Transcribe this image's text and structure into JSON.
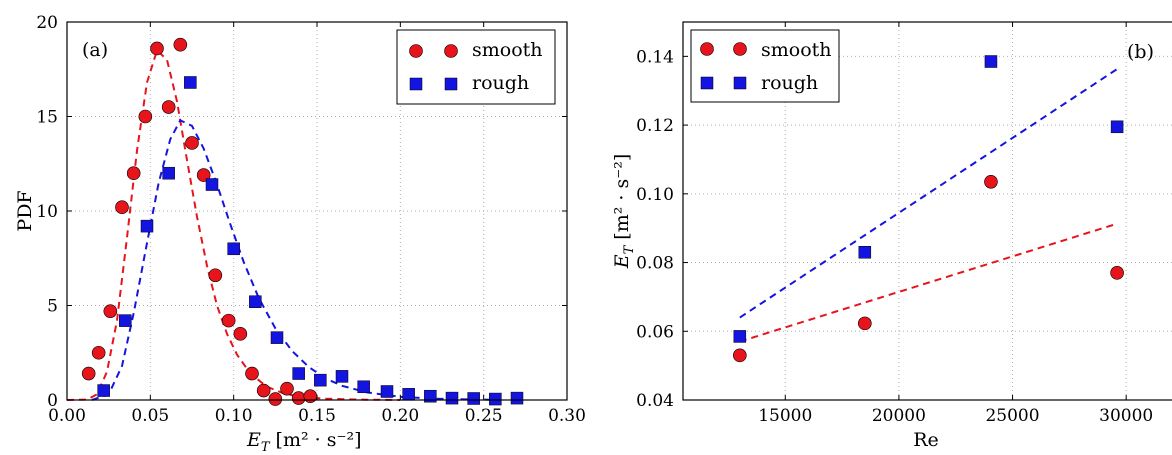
{
  "chart_data": [
    {
      "type": "scatter",
      "panel_label": "(a)",
      "xlabel_main": "E",
      "xlabel_sub": "T",
      "xlabel_units": "[m² · s⁻²]",
      "ylabel": "PDF",
      "xlim": [
        0.0,
        0.3
      ],
      "ylim": [
        0,
        20
      ],
      "xticks": [
        "0.00",
        "0.05",
        "0.10",
        "0.15",
        "0.20",
        "0.25",
        "0.30"
      ],
      "yticks": [
        "0",
        "5",
        "10",
        "15",
        "20"
      ],
      "grid": true,
      "legend_position": "top-right",
      "series": [
        {
          "name": "smooth",
          "marker": "circle",
          "color": "#e8141c",
          "points": [
            [
              0.013,
              1.4
            ],
            [
              0.019,
              2.5
            ],
            [
              0.026,
              4.7
            ],
            [
              0.033,
              10.2
            ],
            [
              0.04,
              12.0
            ],
            [
              0.047,
              15.0
            ],
            [
              0.054,
              18.6
            ],
            [
              0.061,
              15.5
            ],
            [
              0.068,
              18.8
            ],
            [
              0.075,
              13.6
            ],
            [
              0.082,
              11.9
            ],
            [
              0.089,
              6.6
            ],
            [
              0.097,
              4.2
            ],
            [
              0.104,
              3.5
            ],
            [
              0.111,
              1.4
            ],
            [
              0.118,
              0.5
            ],
            [
              0.125,
              0.05
            ],
            [
              0.132,
              0.6
            ],
            [
              0.139,
              0.1
            ],
            [
              0.146,
              0.2
            ]
          ],
          "fit_curve": [
            [
              0.0,
              0.0
            ],
            [
              0.012,
              0.02
            ],
            [
              0.018,
              0.3
            ],
            [
              0.024,
              1.5
            ],
            [
              0.03,
              4.2
            ],
            [
              0.036,
              8.6
            ],
            [
              0.042,
              13.2
            ],
            [
              0.048,
              16.8
            ],
            [
              0.054,
              18.5
            ],
            [
              0.06,
              18.0
            ],
            [
              0.066,
              15.8
            ],
            [
              0.072,
              12.7
            ],
            [
              0.078,
              9.7
            ],
            [
              0.084,
              7.1
            ],
            [
              0.09,
              5.0
            ],
            [
              0.096,
              3.5
            ],
            [
              0.102,
              2.4
            ],
            [
              0.11,
              1.4
            ],
            [
              0.12,
              0.7
            ],
            [
              0.13,
              0.35
            ],
            [
              0.14,
              0.17
            ],
            [
              0.155,
              0.07
            ],
            [
              0.175,
              0.02
            ],
            [
              0.2,
              0.0
            ]
          ]
        },
        {
          "name": "rough",
          "marker": "square",
          "color": "#1414e0",
          "points": [
            [
              0.022,
              0.5
            ],
            [
              0.035,
              4.2
            ],
            [
              0.048,
              9.2
            ],
            [
              0.061,
              12.0
            ],
            [
              0.074,
              16.8
            ],
            [
              0.087,
              11.4
            ],
            [
              0.1,
              8.0
            ],
            [
              0.113,
              5.2
            ],
            [
              0.126,
              3.3
            ],
            [
              0.139,
              1.4
            ],
            [
              0.152,
              1.05
            ],
            [
              0.165,
              1.25
            ],
            [
              0.178,
              0.7
            ],
            [
              0.192,
              0.45
            ],
            [
              0.205,
              0.3
            ],
            [
              0.218,
              0.2
            ],
            [
              0.231,
              0.1
            ],
            [
              0.244,
              0.08
            ],
            [
              0.257,
              0.05
            ],
            [
              0.27,
              0.1
            ]
          ],
          "fit_curve": [
            [
              0.015,
              0.0
            ],
            [
              0.025,
              0.3
            ],
            [
              0.033,
              1.8
            ],
            [
              0.04,
              4.6
            ],
            [
              0.048,
              8.3
            ],
            [
              0.055,
              11.5
            ],
            [
              0.062,
              13.8
            ],
            [
              0.068,
              14.8
            ],
            [
              0.075,
              14.5
            ],
            [
              0.082,
              13.3
            ],
            [
              0.09,
              11.4
            ],
            [
              0.098,
              9.3
            ],
            [
              0.106,
              7.3
            ],
            [
              0.115,
              5.4
            ],
            [
              0.125,
              3.8
            ],
            [
              0.135,
              2.6
            ],
            [
              0.145,
              1.75
            ],
            [
              0.155,
              1.15
            ],
            [
              0.165,
              0.75
            ],
            [
              0.18,
              0.4
            ],
            [
              0.2,
              0.17
            ],
            [
              0.22,
              0.07
            ],
            [
              0.24,
              0.03
            ],
            [
              0.26,
              0.01
            ]
          ]
        }
      ]
    },
    {
      "type": "scatter",
      "panel_label": "(b)",
      "xlabel_main": "Re",
      "ylabel_main": "E",
      "ylabel_sub": "T",
      "ylabel_units": "[m² · s⁻²]",
      "xlim": [
        10500,
        32500
      ],
      "ylim": [
        0.04,
        0.15
      ],
      "xticks": [
        "15000",
        "20000",
        "25000",
        "30000"
      ],
      "xtick_values": [
        15000,
        20000,
        25000,
        30000
      ],
      "yticks": [
        "0.04",
        "0.06",
        "0.08",
        "0.10",
        "0.12",
        "0.14"
      ],
      "ytick_values": [
        0.04,
        0.06,
        0.08,
        0.1,
        0.12,
        0.14
      ],
      "grid": true,
      "legend_position": "top-left",
      "series": [
        {
          "name": "smooth",
          "marker": "circle",
          "color": "#e8141c",
          "points": [
            [
              13000,
              0.053
            ],
            [
              18500,
              0.0623
            ],
            [
              24050,
              0.1035
            ],
            [
              29600,
              0.077
            ]
          ],
          "fit_line": [
            [
              13000,
              0.057
            ],
            [
              29600,
              0.0913
            ]
          ]
        },
        {
          "name": "rough",
          "marker": "square",
          "color": "#1414e0",
          "points": [
            [
              13000,
              0.0585
            ],
            [
              18500,
              0.083
            ],
            [
              24050,
              0.1385
            ],
            [
              29600,
              0.1195
            ]
          ],
          "fit_line": [
            [
              13000,
              0.064
            ],
            [
              29600,
              0.1363
            ]
          ]
        }
      ]
    }
  ]
}
